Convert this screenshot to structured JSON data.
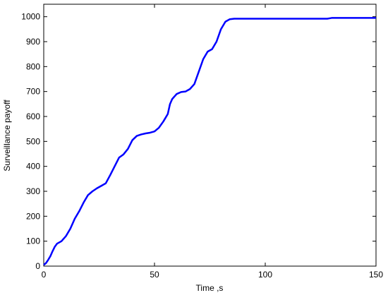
{
  "chart_data": {
    "type": "line",
    "xlabel": "Time ,s",
    "ylabel": "Surveillance payoff",
    "xlim": [
      0,
      150
    ],
    "xticks": [
      0,
      50,
      100,
      150
    ],
    "ylim": [
      0,
      1050
    ],
    "yticks": [
      0,
      100,
      200,
      300,
      400,
      500,
      600,
      700,
      800,
      900,
      1000
    ],
    "grid": false,
    "series": [
      {
        "color": "#0000ff",
        "x": [
          0,
          1,
          2,
          3,
          4,
          5,
          6,
          8,
          10,
          12,
          14,
          16,
          18,
          20,
          22,
          24,
          26,
          28,
          30,
          32,
          34,
          36,
          38,
          40,
          42,
          44,
          46,
          48,
          50,
          52,
          54,
          56,
          57,
          58,
          60,
          62,
          64,
          66,
          68,
          70,
          72,
          74,
          76,
          78,
          80,
          82,
          84,
          86,
          100,
          128,
          130,
          150
        ],
        "values": [
          5,
          12,
          25,
          40,
          60,
          78,
          90,
          100,
          120,
          150,
          190,
          220,
          255,
          285,
          300,
          312,
          322,
          332,
          365,
          400,
          435,
          448,
          470,
          505,
          522,
          528,
          532,
          535,
          540,
          555,
          580,
          610,
          650,
          670,
          690,
          698,
          700,
          710,
          730,
          780,
          830,
          860,
          870,
          900,
          950,
          980,
          990,
          992,
          992,
          992,
          995,
          995
        ]
      }
    ]
  }
}
